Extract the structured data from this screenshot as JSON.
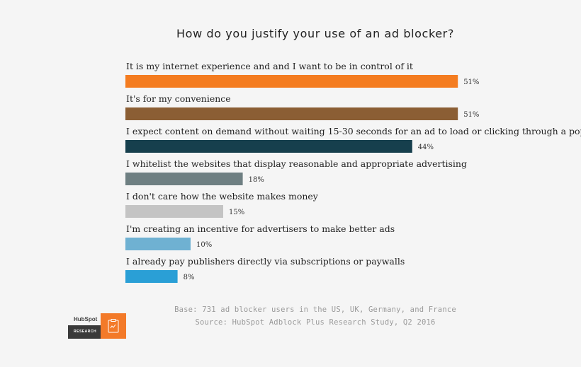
{
  "chart_data": {
    "type": "bar",
    "orientation": "horizontal",
    "title": "How do you justify your use of an ad blocker?",
    "categories": [
      "It is my internet experience and and I want to be in control of it",
      "It's for my convenience",
      "I expect content on demand without waiting 15-30 seconds for an ad to load or clicking through a pop-up",
      "I whitelist the websites that display reasonable and appropriate advertising",
      "I don't care how the website makes money",
      "I'm creating an incentive for advertisers to make better ads",
      "I already pay publishers directly via subscriptions or paywalls"
    ],
    "values": [
      51,
      51,
      44,
      18,
      15,
      10,
      8
    ],
    "value_labels": [
      "51%",
      "51%",
      "44%",
      "18%",
      "15%",
      "10%",
      "8%"
    ],
    "colors": [
      "#f47c20",
      "#8b5e34",
      "#163f4d",
      "#6e7f82",
      "#c4c4c4",
      "#6fb1d2",
      "#2a9fd6"
    ],
    "unit": "%",
    "xlim": [
      0,
      100
    ],
    "grid": false,
    "legend": "none"
  },
  "footnotes": {
    "base": "Base: 731 ad blocker users in the US, UK, Germany, and France",
    "source": "Source: HubSpot Adblock Plus Research Study, Q2 2016"
  },
  "logo": {
    "brand": "HubSpot",
    "label": "RESEARCH",
    "icon": "document-icon"
  }
}
